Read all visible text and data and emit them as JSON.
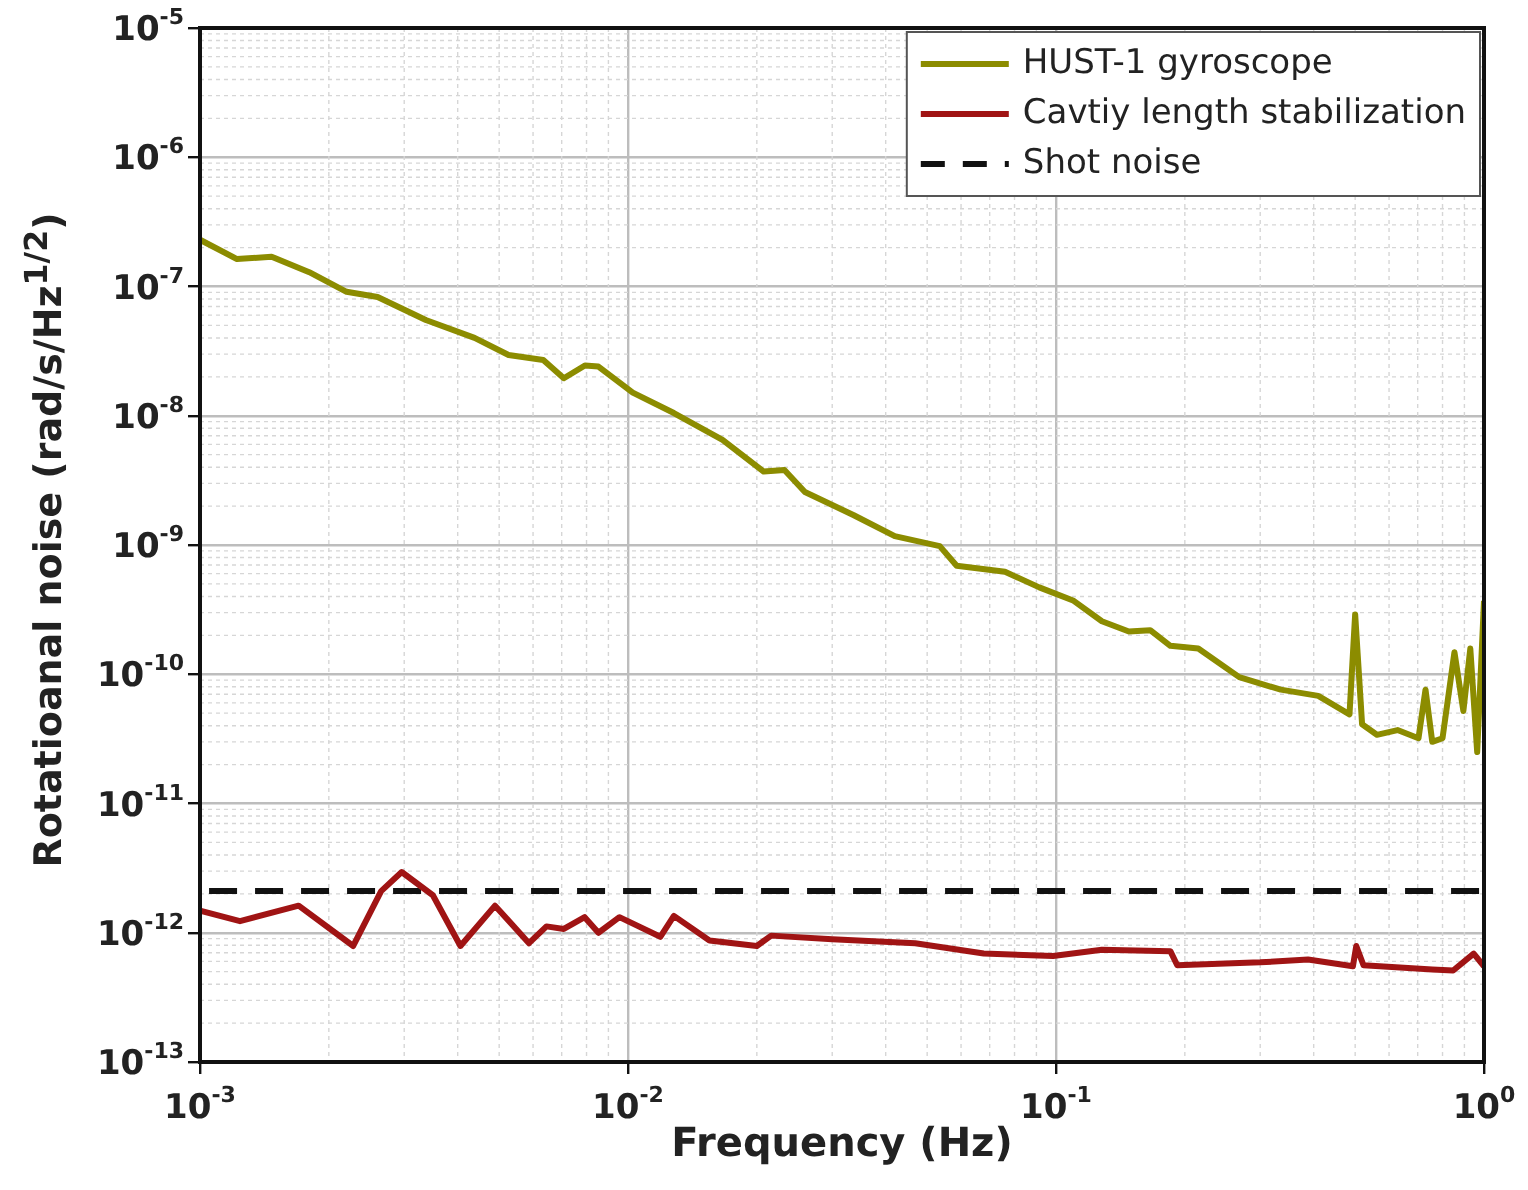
{
  "chart_data": {
    "type": "line",
    "xlabel": "Frequency (Hz)",
    "ylabel": "Rotatioanal noise (rad/s/Hz$^{1/2}$)",
    "log": "xy",
    "xlim": [
      0.001,
      1
    ],
    "ylim": [
      1e-13,
      1e-05
    ],
    "xticks": [
      {
        "value": 0.001,
        "label": "10$^{-3}$"
      },
      {
        "value": 0.01,
        "label": "10$^{-2}$"
      },
      {
        "value": 0.1,
        "label": "10$^{-1}$"
      },
      {
        "value": 1,
        "label": "10$^{0}$"
      }
    ],
    "yticks": [
      {
        "value": 1e-13,
        "label": "10$^{-13}$"
      },
      {
        "value": 1e-12,
        "label": "10$^{-12}$"
      },
      {
        "value": 1e-11,
        "label": "10$^{-11}$"
      },
      {
        "value": 1e-10,
        "label": "10$^{-10}$"
      },
      {
        "value": 1e-09,
        "label": "10$^{-9}$"
      },
      {
        "value": 1e-08,
        "label": "10$^{-8}$"
      },
      {
        "value": 1e-07,
        "label": "10$^{-7}$"
      },
      {
        "value": 1e-06,
        "label": "10$^{-6}$"
      },
      {
        "value": 1e-05,
        "label": "10$^{-5}$"
      }
    ],
    "grid": true,
    "legend": "top right",
    "marker": "none",
    "series": [
      {
        "name": "HUST-1 gyroscope",
        "color": "#8c8c00",
        "line_style": "solid",
        "x": [
          0.001,
          0.00122,
          0.00147,
          0.0018,
          0.0022,
          0.0026,
          0.00337,
          0.00438,
          0.00526,
          0.00634,
          0.00708,
          0.00793,
          0.00853,
          0.01026,
          0.0128,
          0.01663,
          0.02075,
          0.0232,
          0.0259,
          0.0337,
          0.042,
          0.0535,
          0.0586,
          0.076,
          0.0914,
          0.11,
          0.128,
          0.148,
          0.166,
          0.185,
          0.215,
          0.268,
          0.335,
          0.41,
          0.485,
          0.5,
          0.519,
          0.562,
          0.628,
          0.703,
          0.73,
          0.757,
          0.8,
          0.853,
          0.895,
          0.929,
          0.964,
          1
        ],
        "values": [
          2.3e-07,
          1.63e-07,
          1.7e-07,
          1.29e-07,
          9.1e-08,
          8.3e-08,
          5.5e-08,
          4e-08,
          2.95e-08,
          2.7e-08,
          1.95e-08,
          2.45e-08,
          2.4e-08,
          1.51e-08,
          1.05e-08,
          6.5e-09,
          3.7e-09,
          3.8e-09,
          2.57e-09,
          1.7e-09,
          1.17e-09,
          9.8e-10,
          6.9e-10,
          6.2e-10,
          4.7e-10,
          3.7e-10,
          2.57e-10,
          2.14e-10,
          2.19e-10,
          1.66e-10,
          1.58e-10,
          9.5e-11,
          7.6e-11,
          6.8e-11,
          4.9e-11,
          2.9e-10,
          4.1e-11,
          3.4e-11,
          3.7e-11,
          3.2e-11,
          7.6e-11,
          3e-11,
          3.2e-11,
          1.48e-10,
          5.2e-11,
          1.58e-10,
          2.5e-11,
          3.7e-10
        ]
      },
      {
        "name": "Cavtiy length stabilization",
        "color": "#a01414",
        "line_style": "solid",
        "x": [
          0.001,
          0.00124,
          0.0017,
          0.00228,
          0.00265,
          0.00296,
          0.0035,
          0.00406,
          0.00489,
          0.00587,
          0.00645,
          0.00708,
          0.00792,
          0.00853,
          0.00955,
          0.0119,
          0.0128,
          0.0155,
          0.02,
          0.0216,
          0.03,
          0.0469,
          0.0678,
          0.0984,
          0.128,
          0.185,
          0.192,
          0.3,
          0.388,
          0.494,
          0.503,
          0.523,
          0.757,
          0.847,
          0.946,
          1
        ],
        "values": [
          1.48e-12,
          1.23e-12,
          1.62e-12,
          7.9e-13,
          2.1e-12,
          2.95e-12,
          1.95e-12,
          7.9e-13,
          1.62e-12,
          8.3e-13,
          1.12e-12,
          1.07e-12,
          1.32e-12,
          1e-12,
          1.32e-12,
          9.3e-13,
          1.35e-12,
          8.7e-13,
          7.9e-13,
          9.5e-13,
          8.9e-13,
          8.3e-13,
          6.9e-13,
          6.6e-13,
          7.4e-13,
          7.2e-13,
          5.6e-13,
          5.9e-13,
          6.2e-13,
          5.5e-13,
          7.9e-13,
          5.6e-13,
          5.2e-13,
          5.1e-13,
          6.9e-13,
          5.5e-13
        ]
      },
      {
        "name": "Shot noise",
        "color": "#111111",
        "line_style": "dashed",
        "x": [
          0.00105,
          1
        ],
        "values": [
          2.1e-12,
          2.1e-12
        ]
      }
    ]
  }
}
